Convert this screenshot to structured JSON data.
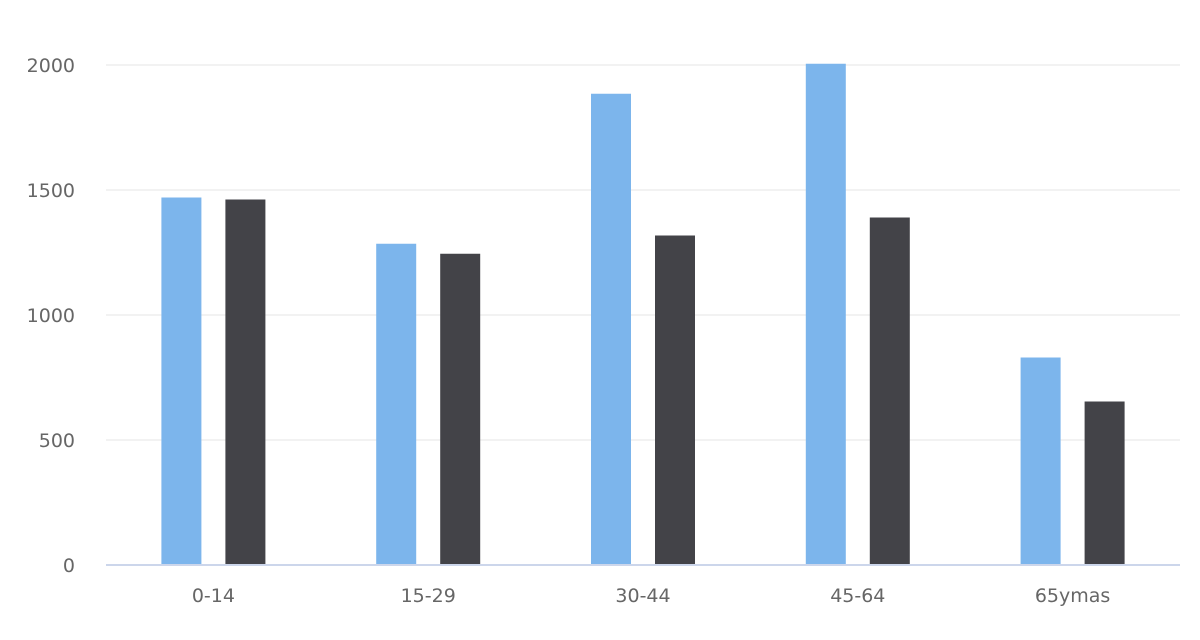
{
  "chart_data": {
    "type": "bar",
    "categories": [
      "0-14",
      "15-29",
      "30-44",
      "45-64",
      "65ymas"
    ],
    "series": [
      {
        "values": [
          1470,
          1285,
          1885,
          2005,
          830
        ],
        "color": "#7cb5ec"
      },
      {
        "values": [
          1462,
          1245,
          1318,
          1390,
          654
        ],
        "color": "#434348"
      }
    ],
    "ylim": [
      0,
      2000
    ],
    "yticks": [
      0,
      500,
      1000,
      1500,
      2000
    ],
    "xlabel": "",
    "ylabel": "",
    "grid": true,
    "grid_color": "#e6e6e6",
    "axis_color": "#ccd6eb",
    "label_color": "#666666"
  }
}
